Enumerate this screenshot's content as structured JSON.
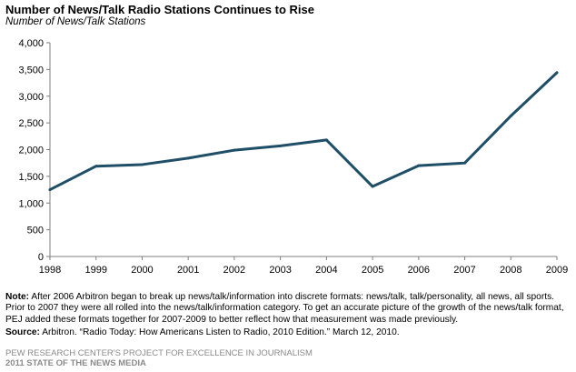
{
  "header": {
    "title": "Number of News/Talk Radio Stations Continues to Rise",
    "subtitle": "Number of News/Talk Stations"
  },
  "chart_data": {
    "type": "line",
    "title": "Number of News/Talk Radio Stations Continues to Rise",
    "subtitle": "Number of News/Talk Stations",
    "xlabel": "",
    "ylabel": "",
    "categories": [
      "1998",
      "1999",
      "2000",
      "2001",
      "2002",
      "2003",
      "2004",
      "2005",
      "2006",
      "2007",
      "2008",
      "2009"
    ],
    "series": [
      {
        "values": [
          1250,
          1690,
          1720,
          1840,
          1990,
          2070,
          2180,
          1310,
          1700,
          1750,
          2630,
          3440
        ]
      }
    ],
    "yticks": [
      "0",
      "500",
      "1,000",
      "1,500",
      "2,000",
      "2,500",
      "3,000",
      "3,500",
      "4,000"
    ],
    "ylim": [
      0,
      4000
    ],
    "grid": false,
    "line_color": "#1f4e67",
    "axis_color": "#7f7f7f"
  },
  "notes": {
    "note_label": "Note:",
    "note_text": "After 2006 Arbitron began to break up news/talk/information into discrete formats: news/talk, talk/personality, all news, all sports. Prior to 2007 they were all rolled into the news/talk/information category. To get an accurate picture of the growth of the news/talk format, PEJ added these formats together for 2007-2009 to better reflect how that measurement was made previously.",
    "source_label": "Source:",
    "source_text": "Arbitron. “Radio Today: How Americans Listen to Radio, 2010 Edition.”  March 12, 2010."
  },
  "footer": {
    "line1": "PEW RESEARCH CENTER'S PROJECT FOR EXCELLENCE IN JOURNALISM",
    "line2": "2011 STATE OF THE NEWS MEDIA"
  }
}
